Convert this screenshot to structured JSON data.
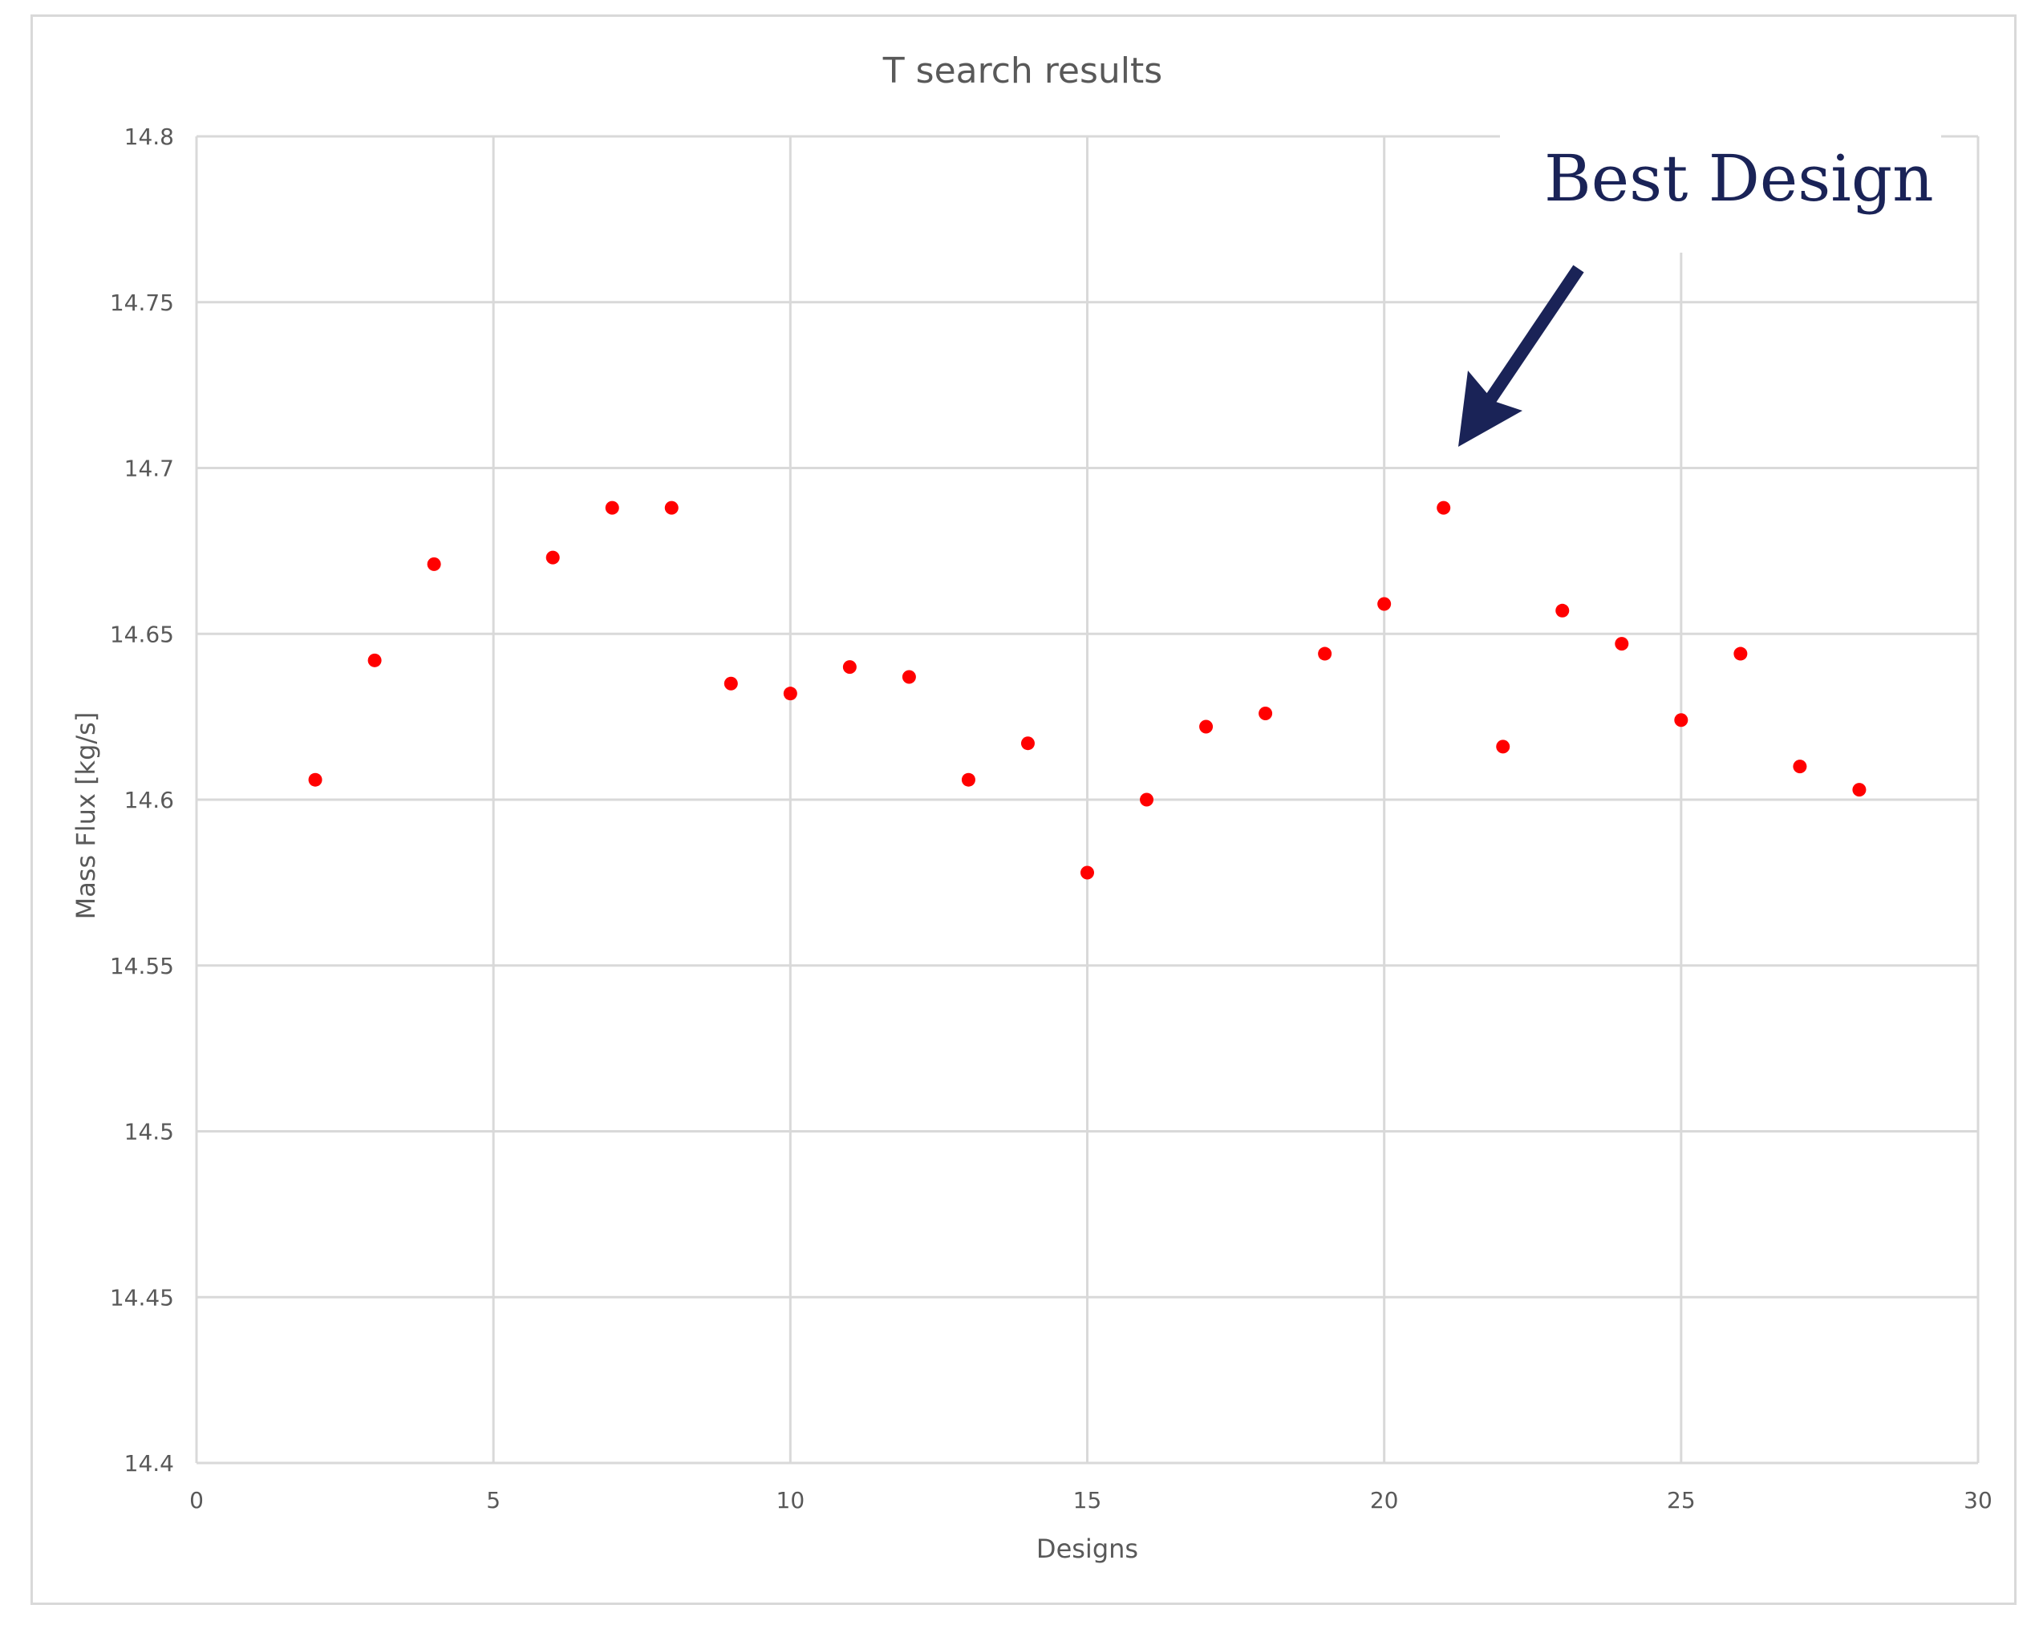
{
  "chart_data": {
    "type": "scatter",
    "title": "T search results",
    "xlabel": "Designs",
    "ylabel": "Mass Flux [kg/s]",
    "xlim": [
      0,
      30
    ],
    "ylim": [
      14.4,
      14.8
    ],
    "x_ticks": [
      0,
      5,
      10,
      15,
      20,
      25,
      30
    ],
    "x_tick_labels": [
      "0",
      "5",
      "10",
      "15",
      "20",
      "25",
      "30"
    ],
    "y_ticks": [
      14.4,
      14.45,
      14.5,
      14.55,
      14.6,
      14.65,
      14.7,
      14.75,
      14.8
    ],
    "y_tick_labels": [
      "14.4",
      "14.45",
      "14.5",
      "14.55",
      "14.6",
      "14.65",
      "14.7",
      "14.75",
      "14.8"
    ],
    "grid": true,
    "marker_color": "#ff0000",
    "series": [
      {
        "x": [
          2,
          3,
          4,
          6,
          7,
          8,
          9,
          10,
          11,
          12,
          13,
          14,
          15,
          16,
          17,
          18,
          19,
          20,
          21,
          22,
          23,
          24,
          25,
          26,
          27,
          28
        ],
        "y": [
          14.606,
          14.642,
          14.671,
          14.673,
          14.688,
          14.688,
          14.635,
          14.632,
          14.64,
          14.637,
          14.606,
          14.617,
          14.578,
          14.6,
          14.622,
          14.626,
          14.644,
          14.659,
          14.688,
          14.616,
          14.657,
          14.647,
          14.624,
          14.644,
          14.61,
          14.603
        ]
      }
    ],
    "annotation": {
      "text": "Best Design",
      "target_x": 21,
      "target_y": 14.688,
      "color": "#1a2357"
    }
  }
}
